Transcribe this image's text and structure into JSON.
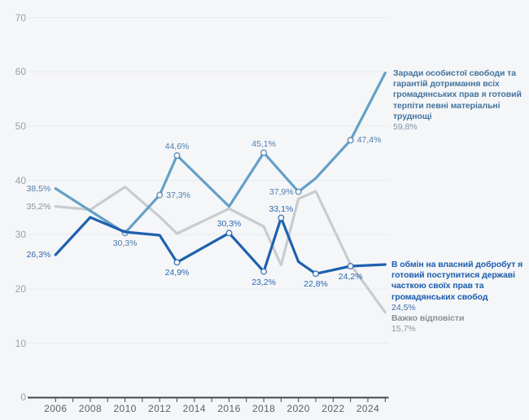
{
  "chart_data": {
    "type": "line",
    "title": "",
    "grid": true,
    "background_color": "#f5f6f8",
    "gridline_color": "#e8eaed",
    "axis_color": "#44484c",
    "x_axis": {
      "start_year": 2006,
      "end_year": 2025,
      "tick_every_year": true,
      "labels": [
        "2006",
        "2008",
        "2010",
        "2012",
        "2014",
        "2016",
        "2018",
        "2020",
        "2022",
        "2024"
      ]
    },
    "y_axis": {
      "min": 0,
      "max": 70,
      "step": 10,
      "labels": [
        "0",
        "10",
        "20",
        "30",
        "40",
        "50",
        "60",
        "70"
      ]
    },
    "legend_position": "right-of-line-end",
    "series": [
      {
        "id": "freedom",
        "name": "Заради особистої свободи та\nгарантій дотримання всіх\nгромадянських прав я готовий\nтерпіти певні матеріальні\nтруднощі",
        "final_value": "59,8%",
        "color": "#64a0c8",
        "label_color": "#4d7ea9",
        "points": [
          {
            "year": 2006,
            "value": 38.5,
            "label": "38,5%",
            "label_pos": "left"
          },
          {
            "year": 2008,
            "value": 34.4,
            "label": null
          },
          {
            "year": 2010,
            "value": 30.3,
            "label": "30,3%",
            "label_pos": "below"
          },
          {
            "year": 2012,
            "value": 37.3,
            "label": "37,3%",
            "label_pos": "right"
          },
          {
            "year": 2013,
            "value": 44.6,
            "label": "44,6%",
            "label_pos": "above"
          },
          {
            "year": 2016,
            "value": 35.2,
            "label": null
          },
          {
            "year": 2018,
            "value": 45.1,
            "label": "45,1%",
            "label_pos": "above"
          },
          {
            "year": 2020,
            "value": 37.9,
            "label": "37,9%",
            "label_pos": "left"
          },
          {
            "year": 2021,
            "value": 40.4,
            "label": null
          },
          {
            "year": 2023,
            "value": 47.4,
            "label": "47,4%",
            "label_pos": "right"
          },
          {
            "year": 2025,
            "value": 59.8,
            "label": null
          }
        ]
      },
      {
        "id": "welfare",
        "name": "В обмін на власний добробут я\nготовий поступитися державі\nчасткою своїх прав та\nгромадянських свобод",
        "final_value": "24,5%",
        "color": "#1e61ae",
        "label_color": "#2b68ae",
        "points": [
          {
            "year": 2006,
            "value": 26.3,
            "label": "26,3%",
            "label_pos": "left"
          },
          {
            "year": 2008,
            "value": 33.2,
            "label": null
          },
          {
            "year": 2010,
            "value": 30.5,
            "label": null
          },
          {
            "year": 2012,
            "value": 29.9,
            "label": null
          },
          {
            "year": 2013,
            "value": 24.9,
            "label": "24,9%",
            "label_pos": "below"
          },
          {
            "year": 2016,
            "value": 30.3,
            "label": "30,3%",
            "label_pos": "above"
          },
          {
            "year": 2018,
            "value": 23.2,
            "label": "23,2%",
            "label_pos": "below"
          },
          {
            "year": 2019,
            "value": 33.1,
            "label": "33,1%",
            "label_pos": "above"
          },
          {
            "year": 2020,
            "value": 25.0,
            "label": null
          },
          {
            "year": 2021,
            "value": 22.8,
            "label": "22,8%",
            "label_pos": "below"
          },
          {
            "year": 2023,
            "value": 24.2,
            "label": "24,2%",
            "label_pos": "below"
          },
          {
            "year": 2025,
            "value": 24.5,
            "label": null
          }
        ]
      },
      {
        "id": "hard-to-answer",
        "name": "Важко відповісти",
        "final_value": "15,7%",
        "color": "#c9cccf",
        "label_color": "#8b9095",
        "points": [
          {
            "year": 2006,
            "value": 35.2,
            "label": "35,2%",
            "label_pos": "left"
          },
          {
            "year": 2008,
            "value": 34.6,
            "label": null
          },
          {
            "year": 2010,
            "value": 38.8,
            "label": null
          },
          {
            "year": 2012,
            "value": 33.3,
            "label": null
          },
          {
            "year": 2013,
            "value": 30.2,
            "label": null
          },
          {
            "year": 2016,
            "value": 34.8,
            "label": null
          },
          {
            "year": 2018,
            "value": 31.5,
            "label": null
          },
          {
            "year": 2019,
            "value": 24.4,
            "label": null
          },
          {
            "year": 2020,
            "value": 36.6,
            "label": null
          },
          {
            "year": 2021,
            "value": 38.0,
            "label": null
          },
          {
            "year": 2023,
            "value": 24.5,
            "label": null
          },
          {
            "year": 2025,
            "value": 15.7,
            "label": null
          }
        ]
      }
    ]
  }
}
